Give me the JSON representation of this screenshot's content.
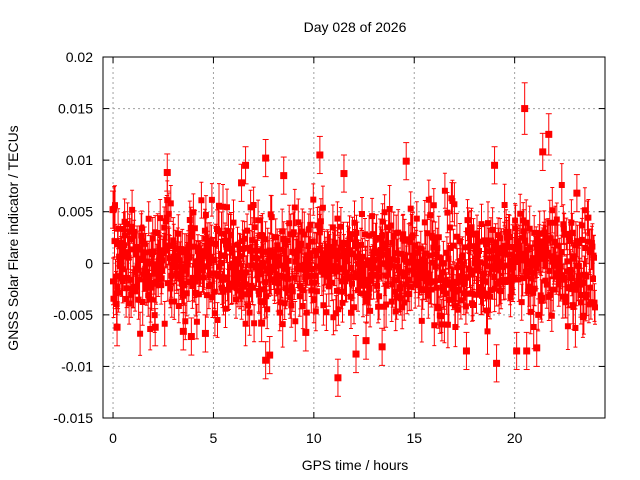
{
  "chart_data": {
    "type": "scatter",
    "title": "Day 028 of 2026",
    "xlabel": "GPS time / hours",
    "ylabel": "GNSS Solar Flare indicator / TECUs",
    "xlim": [
      -0.5,
      24.5
    ],
    "ylim": [
      -0.015,
      0.02
    ],
    "xticks": [
      0,
      5,
      10,
      15,
      20
    ],
    "xtick_labels": [
      "0",
      "5",
      "10",
      "15",
      "20"
    ],
    "yticks": [
      -0.015,
      -0.01,
      -0.005,
      0,
      0.005,
      0.01,
      0.015,
      0.02
    ],
    "ytick_labels": [
      "-0.015",
      "-0.01",
      "-0.005",
      "0",
      "0.005",
      "0.01",
      "0.015",
      "0.02"
    ],
    "grid": true,
    "legend": "none",
    "marker_color": "#ff0000",
    "series": [
      {
        "name": "GNSS Solar Flare indicator",
        "note": "dense noise ~±0.005 TECU with ~0.002 error bars, sampled every ~0.025 h; highlighted points listed below",
        "points": [
          {
            "x": 0.0,
            "y": 0.0052,
            "err": 0.0018
          },
          {
            "x": 0.2,
            "y": -0.0062,
            "err": 0.0018
          },
          {
            "x": 2.1,
            "y": -0.0062,
            "err": 0.0018
          },
          {
            "x": 2.7,
            "y": 0.0088,
            "err": 0.0018
          },
          {
            "x": 3.5,
            "y": -0.0066,
            "err": 0.0018
          },
          {
            "x": 3.9,
            "y": -0.0071,
            "err": 0.0018
          },
          {
            "x": 4.6,
            "y": -0.0068,
            "err": 0.0018
          },
          {
            "x": 6.4,
            "y": 0.0078,
            "err": 0.0018
          },
          {
            "x": 6.6,
            "y": 0.0095,
            "err": 0.0018
          },
          {
            "x": 7.4,
            "y": -0.0058,
            "err": 0.0018
          },
          {
            "x": 7.6,
            "y": 0.0102,
            "err": 0.0018
          },
          {
            "x": 7.6,
            "y": -0.0094,
            "err": 0.0018
          },
          {
            "x": 7.8,
            "y": -0.0089,
            "err": 0.0018
          },
          {
            "x": 8.5,
            "y": 0.0085,
            "err": 0.0018
          },
          {
            "x": 9.6,
            "y": -0.0067,
            "err": 0.0018
          },
          {
            "x": 10.3,
            "y": 0.0105,
            "err": 0.0018
          },
          {
            "x": 11.2,
            "y": -0.0111,
            "err": 0.0018
          },
          {
            "x": 11.5,
            "y": 0.0087,
            "err": 0.0018
          },
          {
            "x": 12.1,
            "y": -0.0088,
            "err": 0.0018
          },
          {
            "x": 12.6,
            "y": -0.0075,
            "err": 0.0018
          },
          {
            "x": 13.4,
            "y": -0.0081,
            "err": 0.0018
          },
          {
            "x": 14.6,
            "y": 0.0099,
            "err": 0.0018
          },
          {
            "x": 17.6,
            "y": -0.0085,
            "err": 0.0018
          },
          {
            "x": 19.0,
            "y": 0.0095,
            "err": 0.0018
          },
          {
            "x": 19.1,
            "y": -0.0097,
            "err": 0.0018
          },
          {
            "x": 20.1,
            "y": -0.0085,
            "err": 0.0018
          },
          {
            "x": 20.5,
            "y": 0.015,
            "err": 0.0025
          },
          {
            "x": 20.6,
            "y": -0.0085,
            "err": 0.0018
          },
          {
            "x": 21.1,
            "y": -0.0082,
            "err": 0.0018
          },
          {
            "x": 21.4,
            "y": 0.0108,
            "err": 0.0018
          },
          {
            "x": 21.7,
            "y": 0.0125,
            "err": 0.002
          },
          {
            "x": 23.1,
            "y": 0.0068,
            "err": 0.0018
          }
        ]
      }
    ]
  }
}
